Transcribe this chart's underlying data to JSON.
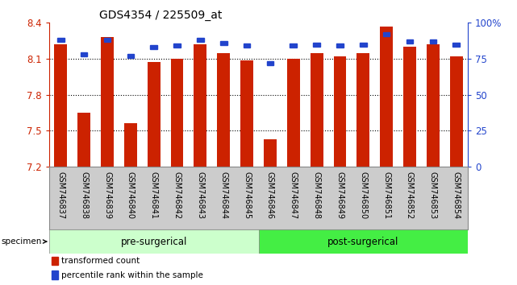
{
  "title": "GDS4354 / 225509_at",
  "categories": [
    "GSM746837",
    "GSM746838",
    "GSM746839",
    "GSM746840",
    "GSM746841",
    "GSM746842",
    "GSM746843",
    "GSM746844",
    "GSM746845",
    "GSM746846",
    "GSM746847",
    "GSM746848",
    "GSM746849",
    "GSM746850",
    "GSM746851",
    "GSM746852",
    "GSM746853",
    "GSM746854"
  ],
  "bar_values": [
    8.22,
    7.65,
    8.28,
    7.56,
    8.07,
    8.1,
    8.22,
    8.15,
    8.09,
    7.43,
    8.1,
    8.15,
    8.12,
    8.15,
    8.37,
    8.2,
    8.22,
    8.12
  ],
  "percentile_values": [
    88,
    78,
    88,
    77,
    83,
    84,
    88,
    86,
    84,
    72,
    84,
    85,
    84,
    85,
    92,
    87,
    87,
    85
  ],
  "ymin": 7.2,
  "ymax": 8.4,
  "yticks": [
    7.2,
    7.5,
    7.8,
    8.1,
    8.4
  ],
  "right_yticks": [
    0,
    25,
    50,
    75,
    100
  ],
  "bar_color": "#cc2200",
  "percentile_color": "#2244cc",
  "pre_surgical_count": 9,
  "post_surgical_count": 9,
  "pre_label": "pre-surgerical",
  "post_label": "post-surgerical",
  "specimen_label": "specimen",
  "legend_red": "transformed count",
  "legend_blue": "percentile rank within the sample",
  "bar_width": 0.55,
  "pre_color": "#ccffcc",
  "post_color": "#44ee44",
  "tick_label_color": "#cc2200",
  "right_tick_color": "#2244cc",
  "xtick_bg_color": "#cccccc",
  "spine_color": "#888888"
}
